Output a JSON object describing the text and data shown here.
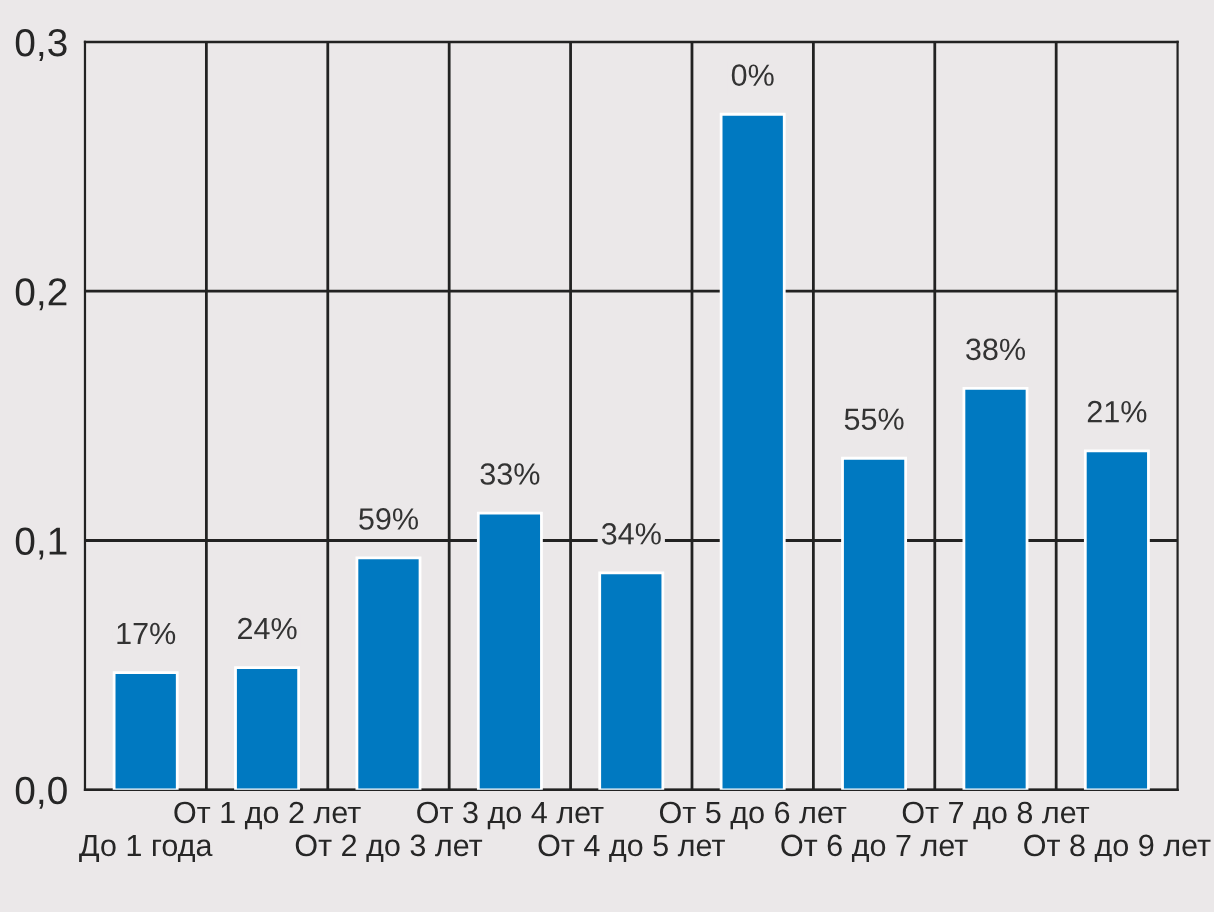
{
  "chart_data": {
    "type": "bar",
    "categories": [
      "До 1 года",
      "От 1 до 2 лет",
      "От 2 до 3 лет",
      "От 3 до 4 лет",
      "От 4 до 5 лет",
      "От 5 до 6 лет",
      "От 6 до 7 лет",
      "От 7 до 8 лет",
      "От 8 до 9 лет"
    ],
    "values": [
      0.047,
      0.049,
      0.093,
      0.111,
      0.087,
      0.271,
      0.133,
      0.161,
      0.136
    ],
    "annotations": [
      {
        "text": "17%",
        "x": "До 1 года",
        "y": 0.047
      },
      {
        "text": "24%",
        "x": "От 1 до 2 лет",
        "y": 0.049
      },
      {
        "text": "59%",
        "x": "От 2 до 3 лет",
        "y": 0.093
      },
      {
        "text": "33%",
        "x": "От 3 до 4 лет",
        "y": 0.111
      },
      {
        "text": "34%",
        "x": "От 4 до 5 лет",
        "y": 0.087
      },
      {
        "text": "0%",
        "x": "От 5 до 6 лет",
        "y": 0.271
      },
      {
        "text": "55%",
        "x": "От 6 до 7 лет",
        "y": 0.133
      },
      {
        "text": "38%",
        "x": "От 7 до 8 лет",
        "y": 0.161
      },
      {
        "text": "21%",
        "x": "От 8 до 9 лет",
        "y": 0.136
      }
    ],
    "color": "#0079c1",
    "ylim": [
      0,
      0.3
    ],
    "yticks": [
      {
        "value": 0,
        "label": "0,0"
      },
      {
        "value": 0.1,
        "label": "0,1"
      },
      {
        "value": 0.2,
        "label": "0,2"
      },
      {
        "value": 0.3,
        "label": "0,3"
      }
    ],
    "grid": true
  }
}
